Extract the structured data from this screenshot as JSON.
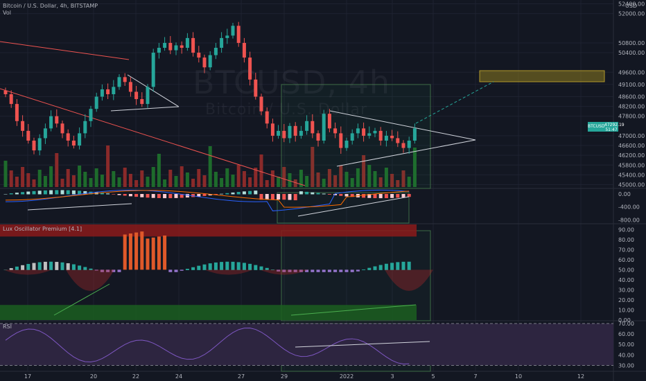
{
  "header": {
    "symbol_line": "Bitcoin / U.S. Dollar, 4h, BITSTAMP",
    "vol_label": "Vol",
    "currency": "USD"
  },
  "watermark": {
    "line1": "BTCUSD, 4h",
    "line2": "Bitcoin / U.S. Dollar"
  },
  "price_tag": {
    "symbol": "BTCUSD",
    "value": "47292.19",
    "timer": "51:47"
  },
  "panels": {
    "osc_title": "Lux Oscillator Premium [4.1]",
    "rsi_title": "RSI"
  },
  "colors": {
    "background": "#131722",
    "up": "#26a69a",
    "down": "#ef5350",
    "vol_up": "#1e6b2c",
    "vol_down": "#8a2a2a",
    "rsi_fill": "#2d2540",
    "osc_top_zone": "#8b1a1a",
    "osc_bottom_zone": "#1b5e20",
    "highlight_box": "#8d7a1f"
  },
  "chart_data": [
    {
      "type": "line",
      "title": "Bitcoin / U.S. Dollar, 4h, BITSTAMP",
      "price_ticks": [
        "52400.00",
        "52000.00",
        "50800.00",
        "50400.00",
        "49600.00",
        "49100.00",
        "48600.00",
        "48200.00",
        "47800.00",
        "47000.00",
        "46600.00",
        "46200.00",
        "45800.00",
        "45400.00",
        "45000.00"
      ],
      "x_ticks": [
        "17",
        "20",
        "22",
        "24",
        "27",
        "29",
        "2022",
        "3",
        "5",
        "7",
        "10",
        "12"
      ],
      "series": [
        {
          "values": [
            48700,
            48300,
            47600,
            47200,
            46800,
            46400,
            46900,
            47300,
            47800,
            47500,
            47100,
            46800,
            46600,
            47100,
            47600,
            48100,
            48600,
            48900,
            48700,
            49000,
            49400,
            49200,
            48800,
            48500,
            48300,
            49000,
            50400,
            50600,
            50800,
            50500,
            50700,
            50600,
            51000,
            50400,
            50200,
            49800,
            50300,
            50600,
            51000,
            51100,
            51500,
            50800,
            50200,
            49300,
            48600,
            48000,
            47500,
            47000,
            47200,
            46900,
            47400,
            47000,
            47200,
            47600,
            47100,
            46800,
            47900,
            47300,
            47100,
            46500,
            46800,
            47100,
            47300,
            47000,
            47100,
            47200,
            46800,
            47000,
            46900,
            46700,
            46500,
            46800,
            47300
          ]
        }
      ],
      "ylim": [
        44900,
        52500
      ]
    },
    {
      "type": "bar",
      "title": "",
      "ylabel": "",
      "y_ticks": [
        "0.00",
        "-400.00",
        "-800.00"
      ],
      "ylim": [
        -900,
        150
      ]
    },
    {
      "type": "area",
      "title": "Lux Oscillator Premium [4.1]",
      "y_ticks": [
        "90.00",
        "80.00",
        "70.00",
        "60.00",
        "50.00",
        "40.00",
        "30.00",
        "20.00",
        "10.00",
        "0.00"
      ],
      "ylim": [
        0,
        95
      ]
    },
    {
      "type": "line",
      "title": "RSI",
      "y_ticks": [
        "70.00",
        "60.00",
        "50.00",
        "40.00",
        "30.00"
      ],
      "ylim": [
        25,
        72
      ]
    }
  ]
}
